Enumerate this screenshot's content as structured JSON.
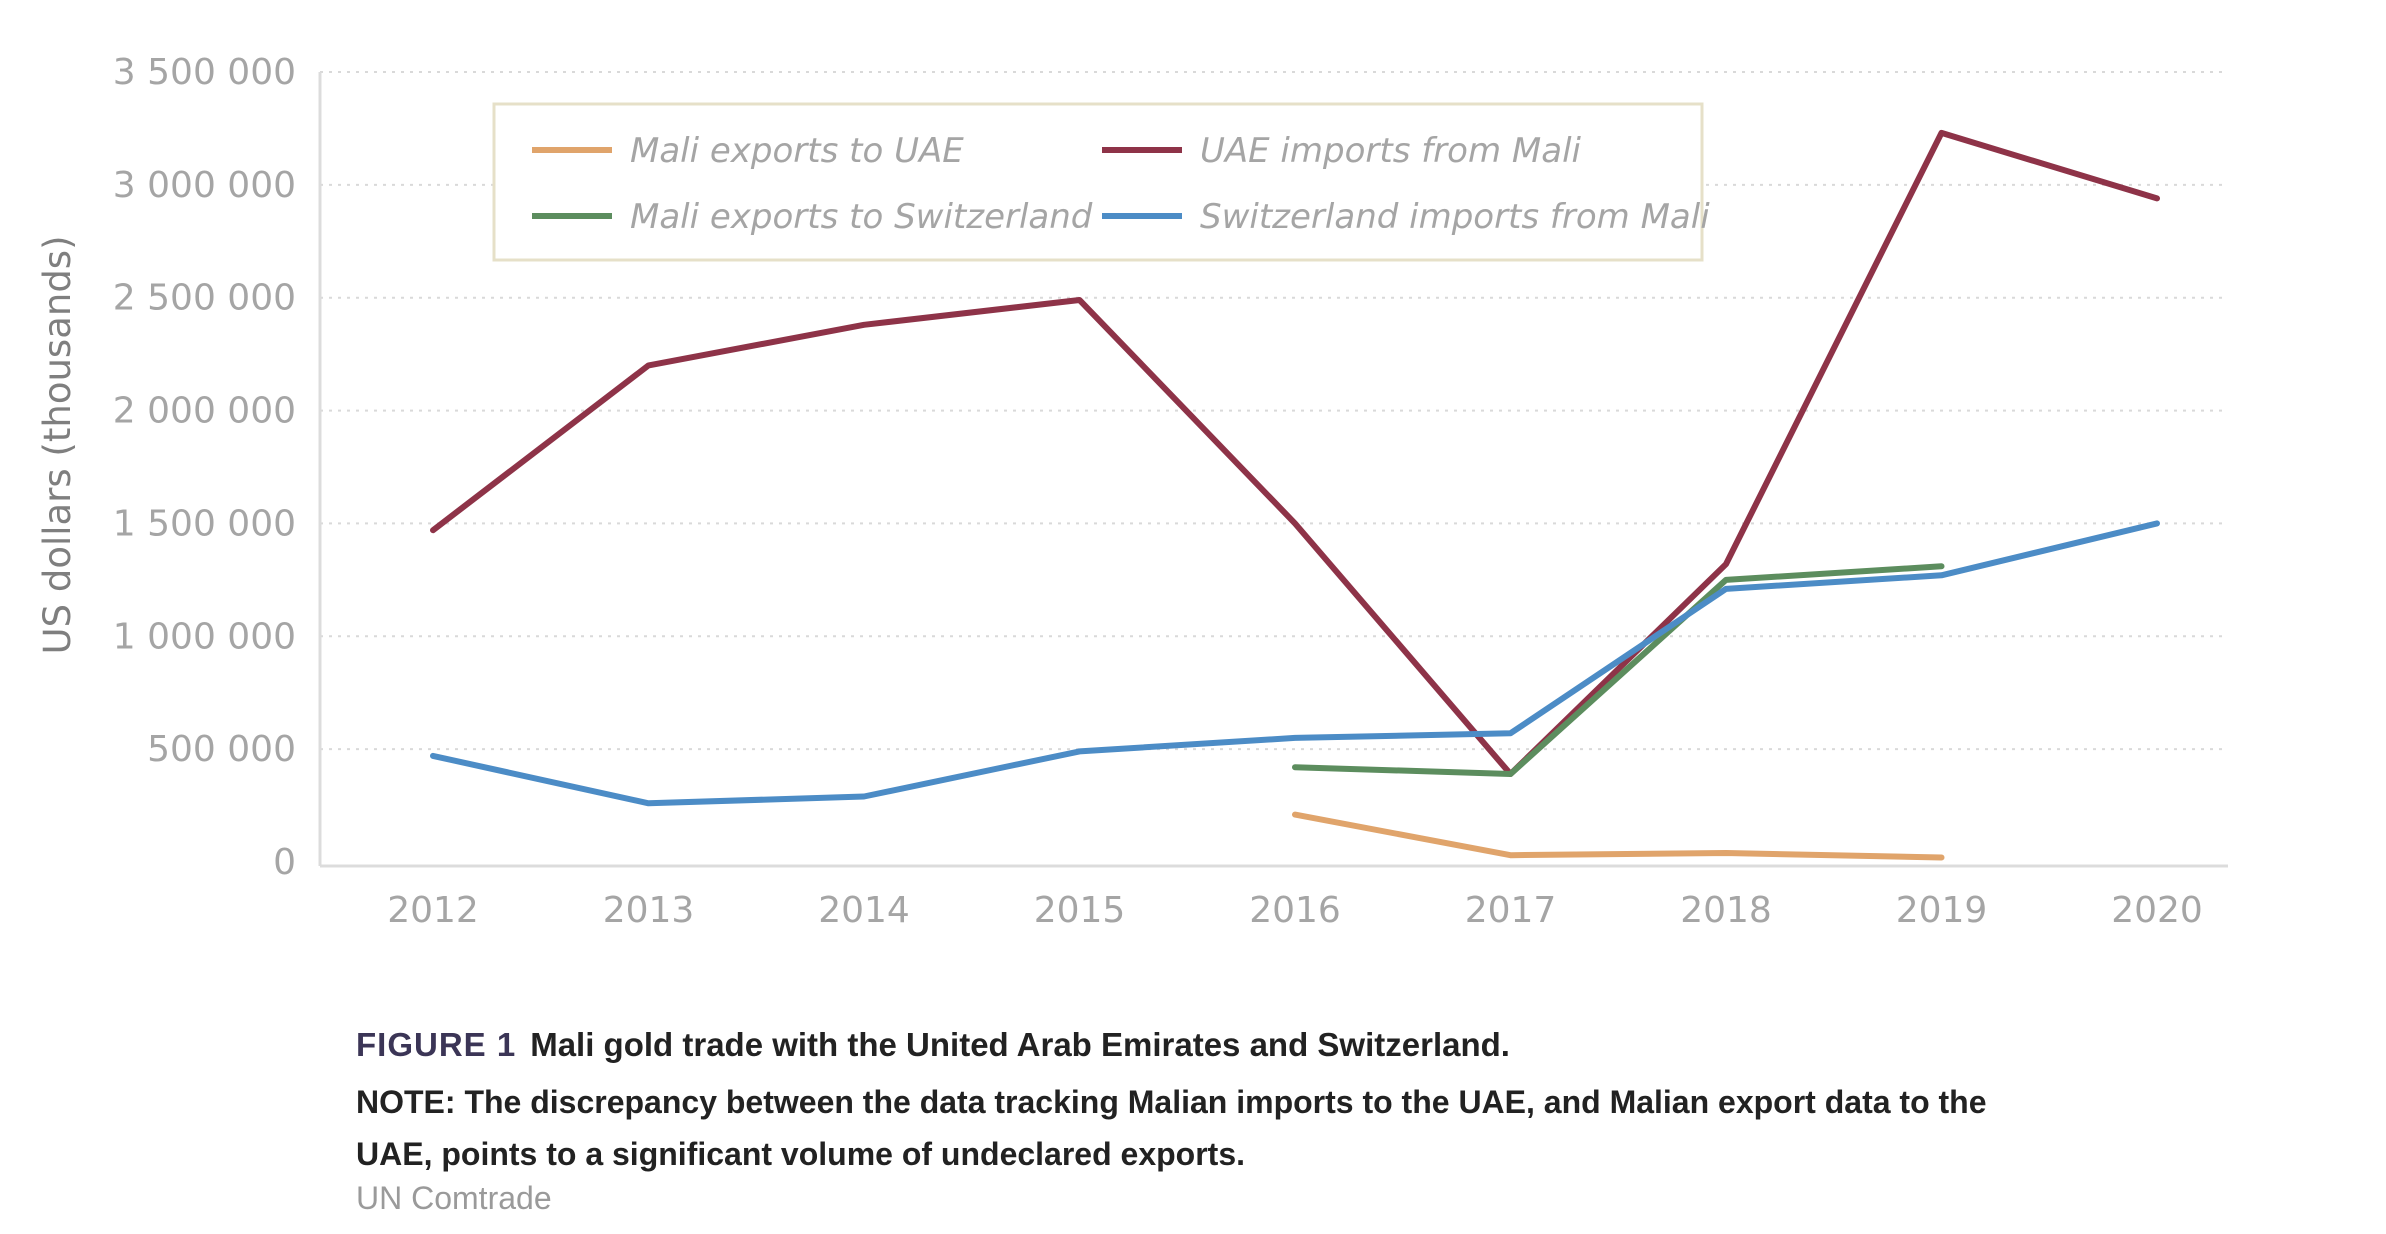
{
  "chart_data": {
    "type": "line",
    "ylabel": "US dollars (thousands)",
    "xlabel": "",
    "x": [
      "2012",
      "2013",
      "2014",
      "2015",
      "2016",
      "2017",
      "2018",
      "2019",
      "2020"
    ],
    "ylim": [
      0,
      3500000
    ],
    "y_ticks": [
      0,
      500000,
      1000000,
      1500000,
      2000000,
      2500000,
      3000000,
      3500000
    ],
    "y_tick_labels": [
      "0",
      "500 000",
      "1 000 000",
      "1 500 000",
      "2 000 000",
      "2 500 000",
      "3 000 000",
      "3 500 000"
    ],
    "grid": true,
    "legend_position": "top-left",
    "series": [
      {
        "name": "Mali exports to UAE",
        "color": "#e0a46b",
        "values": [
          null,
          null,
          null,
          null,
          210000,
          30000,
          40000,
          20000,
          null
        ]
      },
      {
        "name": "UAE imports from Mali",
        "color": "#8e3348",
        "values": [
          1470000,
          2200000,
          2380000,
          2490000,
          1500000,
          390000,
          1320000,
          3230000,
          2940000
        ]
      },
      {
        "name": "Mali exports to Switzerland",
        "color": "#5c8d5e",
        "values": [
          null,
          null,
          null,
          null,
          420000,
          390000,
          1250000,
          1310000,
          null
        ]
      },
      {
        "name": "Switzerland imports from Mali",
        "color": "#4c8cc6",
        "values": [
          470000,
          260000,
          290000,
          490000,
          550000,
          570000,
          1210000,
          1270000,
          1500000
        ]
      }
    ]
  },
  "caption": {
    "figure_label": "FIGURE 1",
    "title": "Mali gold trade with the United Arab Emirates and Switzerland.",
    "note": "NOTE: The discrepancy between the data tracking Malian imports to the UAE, and Malian export data to the UAE, points to a significant volume of undeclared exports.",
    "source": "UN Comtrade"
  }
}
